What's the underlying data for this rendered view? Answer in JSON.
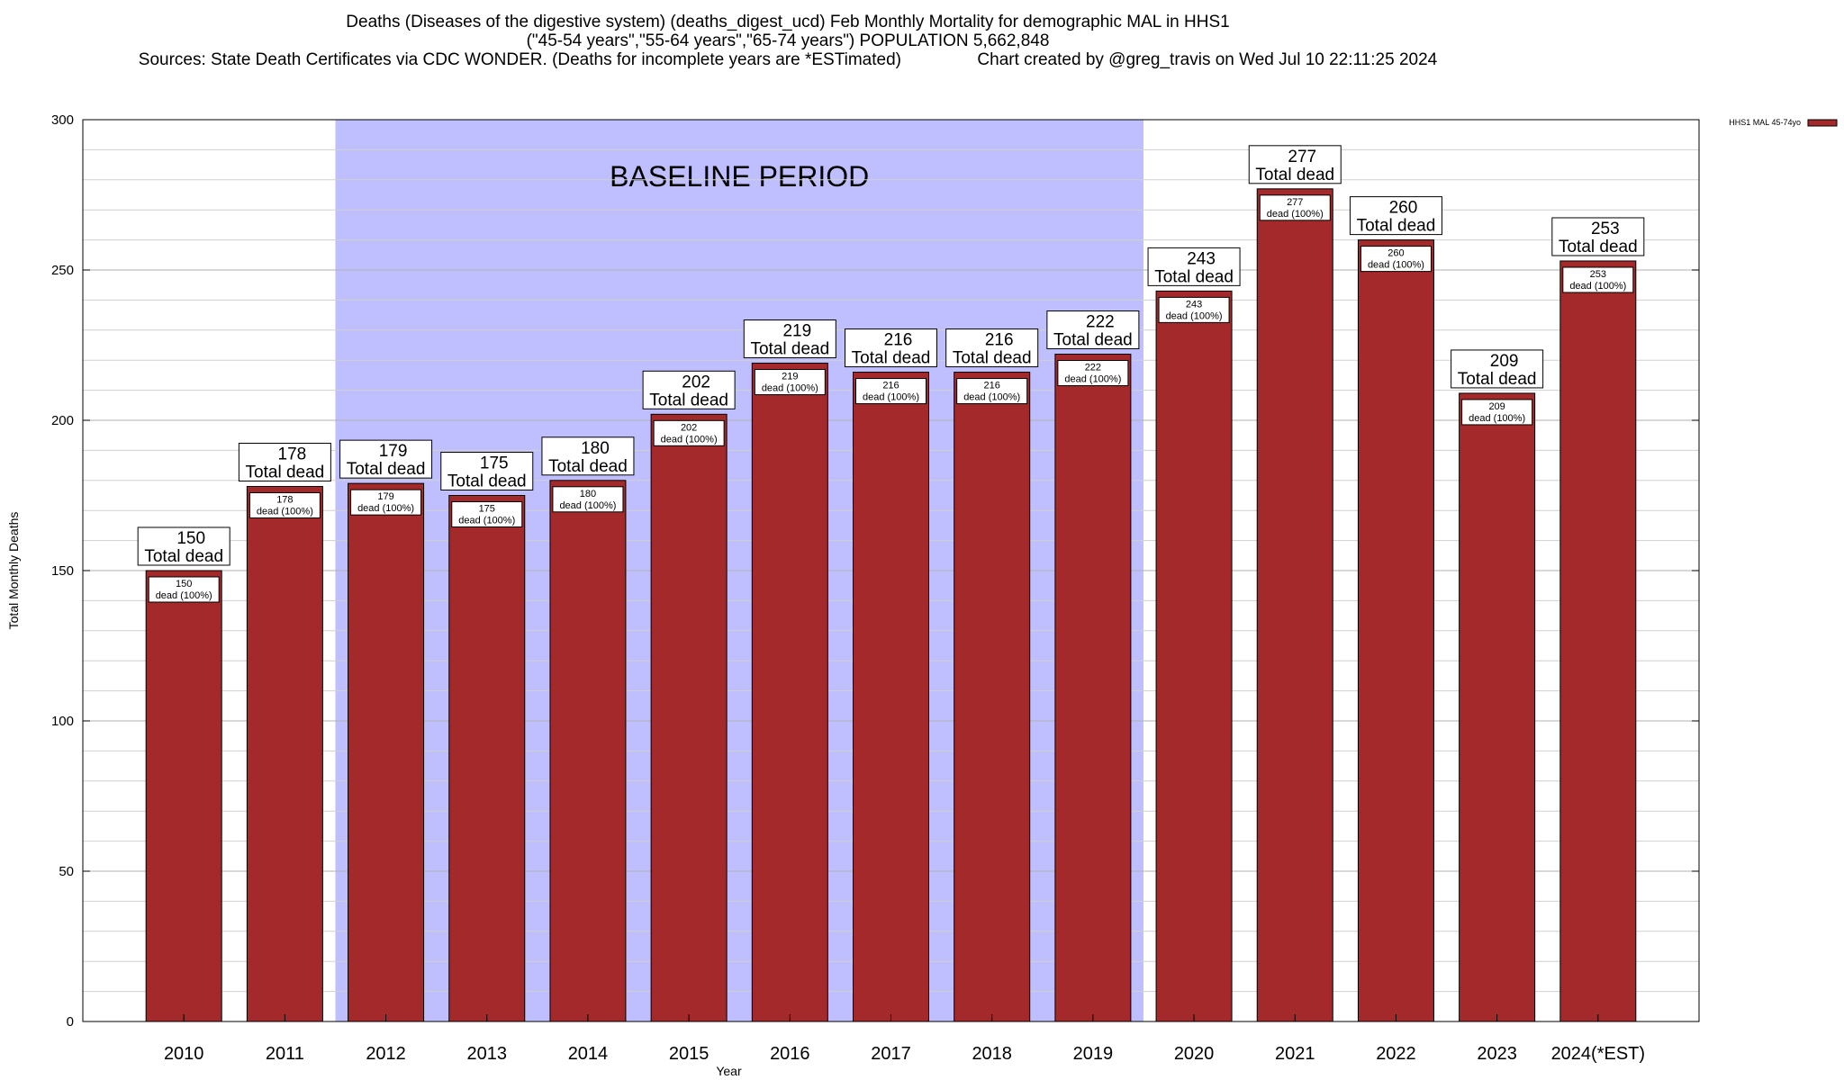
{
  "header": {
    "title_line1": "Deaths (Diseases of the digestive system) (deaths_digest_ucd) Feb Monthly Mortality for demographic MAL in HHS1",
    "title_line2": "(\"45-54 years\",\"55-64 years\",\"65-74 years\") POPULATION 5,662,848",
    "title_line3": "Sources: State Death Certificates via CDC WONDER. (Deaths for incomplete years are *ESTimated)                Chart created by @greg_travis on Wed Jul 10 22:11:25 2024"
  },
  "chart_data": {
    "type": "bar",
    "categories": [
      "2010",
      "2011",
      "2012",
      "2013",
      "2014",
      "2015",
      "2016",
      "2017",
      "2018",
      "2019",
      "2020",
      "2021",
      "2022",
      "2023",
      "2024(*EST)"
    ],
    "series": [
      {
        "name": "HHS1 MAL 45-74yo",
        "color": "#a3292a",
        "values": [
          150,
          178,
          179,
          175,
          180,
          202,
          219,
          216,
          216,
          222,
          243,
          277,
          260,
          209,
          253
        ]
      }
    ],
    "total_label_suffix": "Total dead",
    "inner_label_suffix": "dead (100%)",
    "xlabel": "Year",
    "ylabel": "Total Monthly Deaths",
    "ylim": [
      0,
      300
    ],
    "yticks": [
      0,
      50,
      100,
      150,
      200,
      250,
      300
    ],
    "ytick_labels": [
      "0",
      "50",
      "100",
      "150",
      "200",
      "250",
      "300"
    ],
    "grid": true,
    "legend_position": "top-right",
    "baseline": {
      "label": "BASELINE PERIOD",
      "start": "2012",
      "end": "2019",
      "color": "#bfbfff"
    }
  }
}
